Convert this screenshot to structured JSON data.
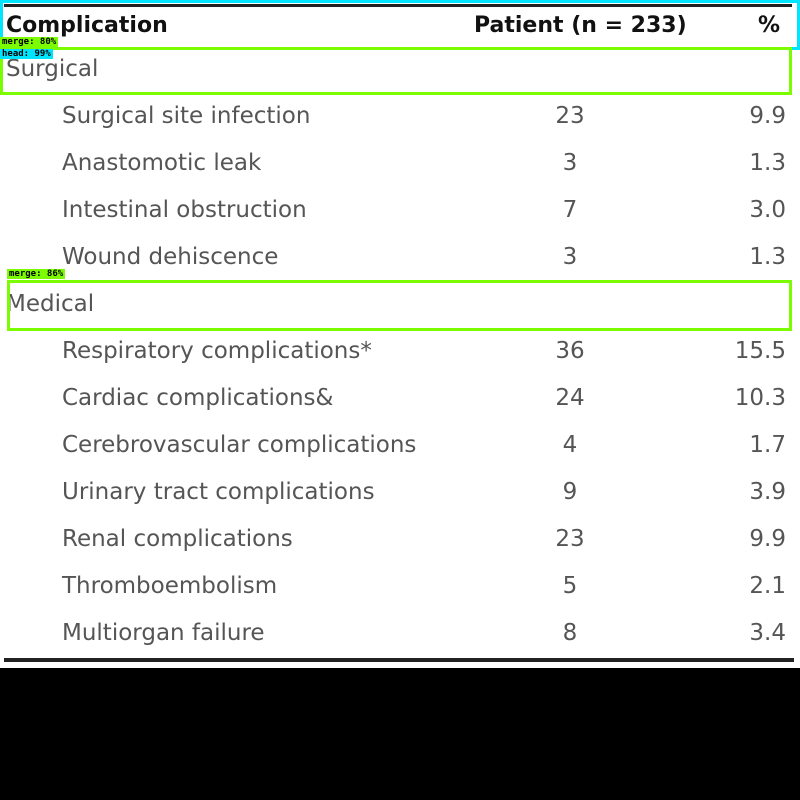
{
  "table": {
    "header": {
      "complication": "Complication",
      "patient": "Patient (n = 233)",
      "percent": "%"
    },
    "groups": [
      {
        "label": "Surgical",
        "rows": [
          {
            "name": "Surgical site infection",
            "n": "23",
            "pct": "9.9"
          },
          {
            "name": "Anastomotic leak",
            "n": "3",
            "pct": "1.3"
          },
          {
            "name": "Intestinal obstruction",
            "n": "7",
            "pct": "3.0"
          },
          {
            "name": "Wound dehiscence",
            "n": "3",
            "pct": "1.3"
          }
        ]
      },
      {
        "label": "Medical",
        "rows": [
          {
            "name": "Respiratory complications*",
            "n": "36",
            "pct": "15.5"
          },
          {
            "name": "Cardiac complications&",
            "n": "24",
            "pct": "10.3"
          },
          {
            "name": "Cerebrovascular complications",
            "n": "4",
            "pct": "1.7"
          },
          {
            "name": "Urinary tract complications",
            "n": "9",
            "pct": "3.9"
          },
          {
            "name": "Renal complications",
            "n": "23",
            "pct": "9.9"
          },
          {
            "name": "Thromboembolism",
            "n": "5",
            "pct": "2.1"
          },
          {
            "name": "Multiorgan failure",
            "n": "8",
            "pct": "3.4"
          }
        ]
      }
    ]
  },
  "annotations": {
    "header_tag": "head: 99%",
    "merge_tag_top": "merge: 80%",
    "merge_tag_medical": "merge: 86%",
    "colors": {
      "cyan": "#00e5ff",
      "green": "#7cfc00"
    }
  }
}
